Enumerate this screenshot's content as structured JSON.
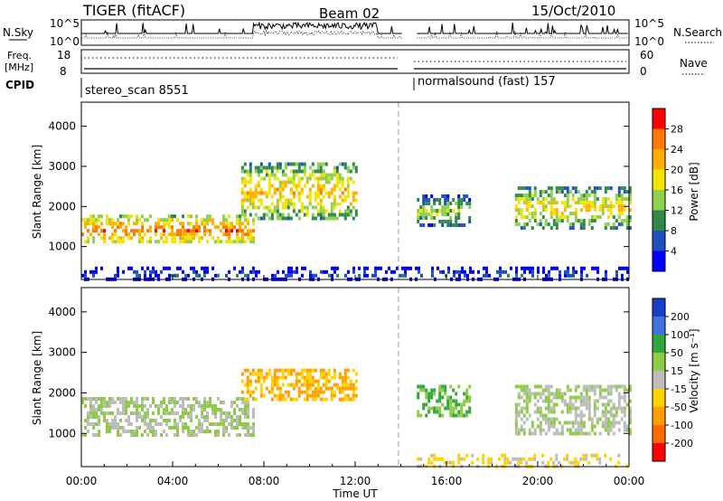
{
  "header": {
    "radar": "TIGER (fitACF)",
    "beam": "Beam 02",
    "date": "15/Oct/2010"
  },
  "top_panels": {
    "nsky_label": "N.Sky",
    "nsky_ticks": [
      "10^5",
      "10^0"
    ],
    "nsearch_label": "N.Search",
    "nsearch_ticks": [
      "10^5",
      "10^0"
    ],
    "freq_label": "Freq.",
    "freq_unit": "[MHz]",
    "freq_ticks": [
      "18",
      "8"
    ],
    "nave_label": "Nave",
    "nave_ticks": [
      "60",
      "0"
    ],
    "cpid_label": "CPID",
    "cpid_segments": [
      {
        "label": "stereo_scan 8551",
        "start_hour": 0,
        "end_hour": 14.1
      },
      {
        "label": "normalsound (fast) 157",
        "start_hour": 14.7,
        "end_hour": 24
      }
    ]
  },
  "chart_data": [
    {
      "type": "heatmap",
      "name": "power",
      "ylabel": "Slant Range [km]",
      "yticks": [
        "1000",
        "2000",
        "3000",
        "4000"
      ],
      "ylim": [
        180,
        4600
      ],
      "xlim": [
        0,
        24
      ],
      "colorbar": {
        "label": "Power [dB]",
        "ticks": [
          "4",
          "8",
          "12",
          "16",
          "20",
          "24",
          "28"
        ],
        "range": [
          0,
          32
        ],
        "colors": [
          "#0000ff",
          "#1e4fbf",
          "#2f8a4a",
          "#8fd050",
          "#f2e600",
          "#ffb000",
          "#ff7a00",
          "#ff0000"
        ]
      },
      "features": [
        {
          "region": "main band",
          "hours": [
            0,
            7.5
          ],
          "range_km": [
            1100,
            1800
          ],
          "power_db": 24
        },
        {
          "region": "upper band",
          "hours": [
            7,
            12
          ],
          "range_km": [
            1700,
            3100
          ],
          "power_db": 20
        },
        {
          "region": "after gap band",
          "hours": [
            14.7,
            17
          ],
          "range_km": [
            1500,
            2300
          ],
          "power_db": 14
        },
        {
          "region": "evening band",
          "hours": [
            19,
            24
          ],
          "range_km": [
            1500,
            2500
          ],
          "power_db": 18
        },
        {
          "region": "near range",
          "hours": [
            0,
            24
          ],
          "range_km": [
            200,
            500
          ],
          "power_db": 6
        }
      ]
    },
    {
      "type": "heatmap",
      "name": "velocity",
      "ylabel": "Slant Range [km]",
      "yticks": [
        "1000",
        "2000",
        "3000",
        "4000"
      ],
      "ylim": [
        180,
        4600
      ],
      "xlim": [
        0,
        24
      ],
      "xlabel": "Time UT",
      "xticks": [
        "00:00",
        "04:00",
        "08:00",
        "12:00",
        "16:00",
        "20:00",
        "00:00"
      ],
      "colorbar": {
        "label": "Velocity [m s⁻¹]",
        "ticks": [
          "200",
          "100",
          "50",
          "15",
          "-15",
          "-50",
          "-100",
          "-200"
        ],
        "colors": [
          "#1b3ec9",
          "#3f73e0",
          "#2fa83c",
          "#8fcc45",
          "#bdbdbd",
          "#ffd200",
          "#ffa000",
          "#ff6a00",
          "#ff0000"
        ]
      },
      "features": [
        {
          "region": "ground scatter band",
          "hours": [
            0,
            7.5
          ],
          "range_km": [
            1000,
            1900
          ],
          "velocity_ms": 0
        },
        {
          "region": "upper structure",
          "hours": [
            7,
            12
          ],
          "range_km": [
            1800,
            2600
          ],
          "velocity_ms": -80
        },
        {
          "region": "after gap",
          "hours": [
            14.7,
            17
          ],
          "range_km": [
            1400,
            2200
          ],
          "velocity_ms": 40
        },
        {
          "region": "evening",
          "hours": [
            19,
            24
          ],
          "range_km": [
            1000,
            2200
          ],
          "velocity_ms": 0
        },
        {
          "region": "near range",
          "hours": [
            14.7,
            24
          ],
          "range_km": [
            200,
            500
          ],
          "velocity_ms": -40
        }
      ]
    }
  ]
}
